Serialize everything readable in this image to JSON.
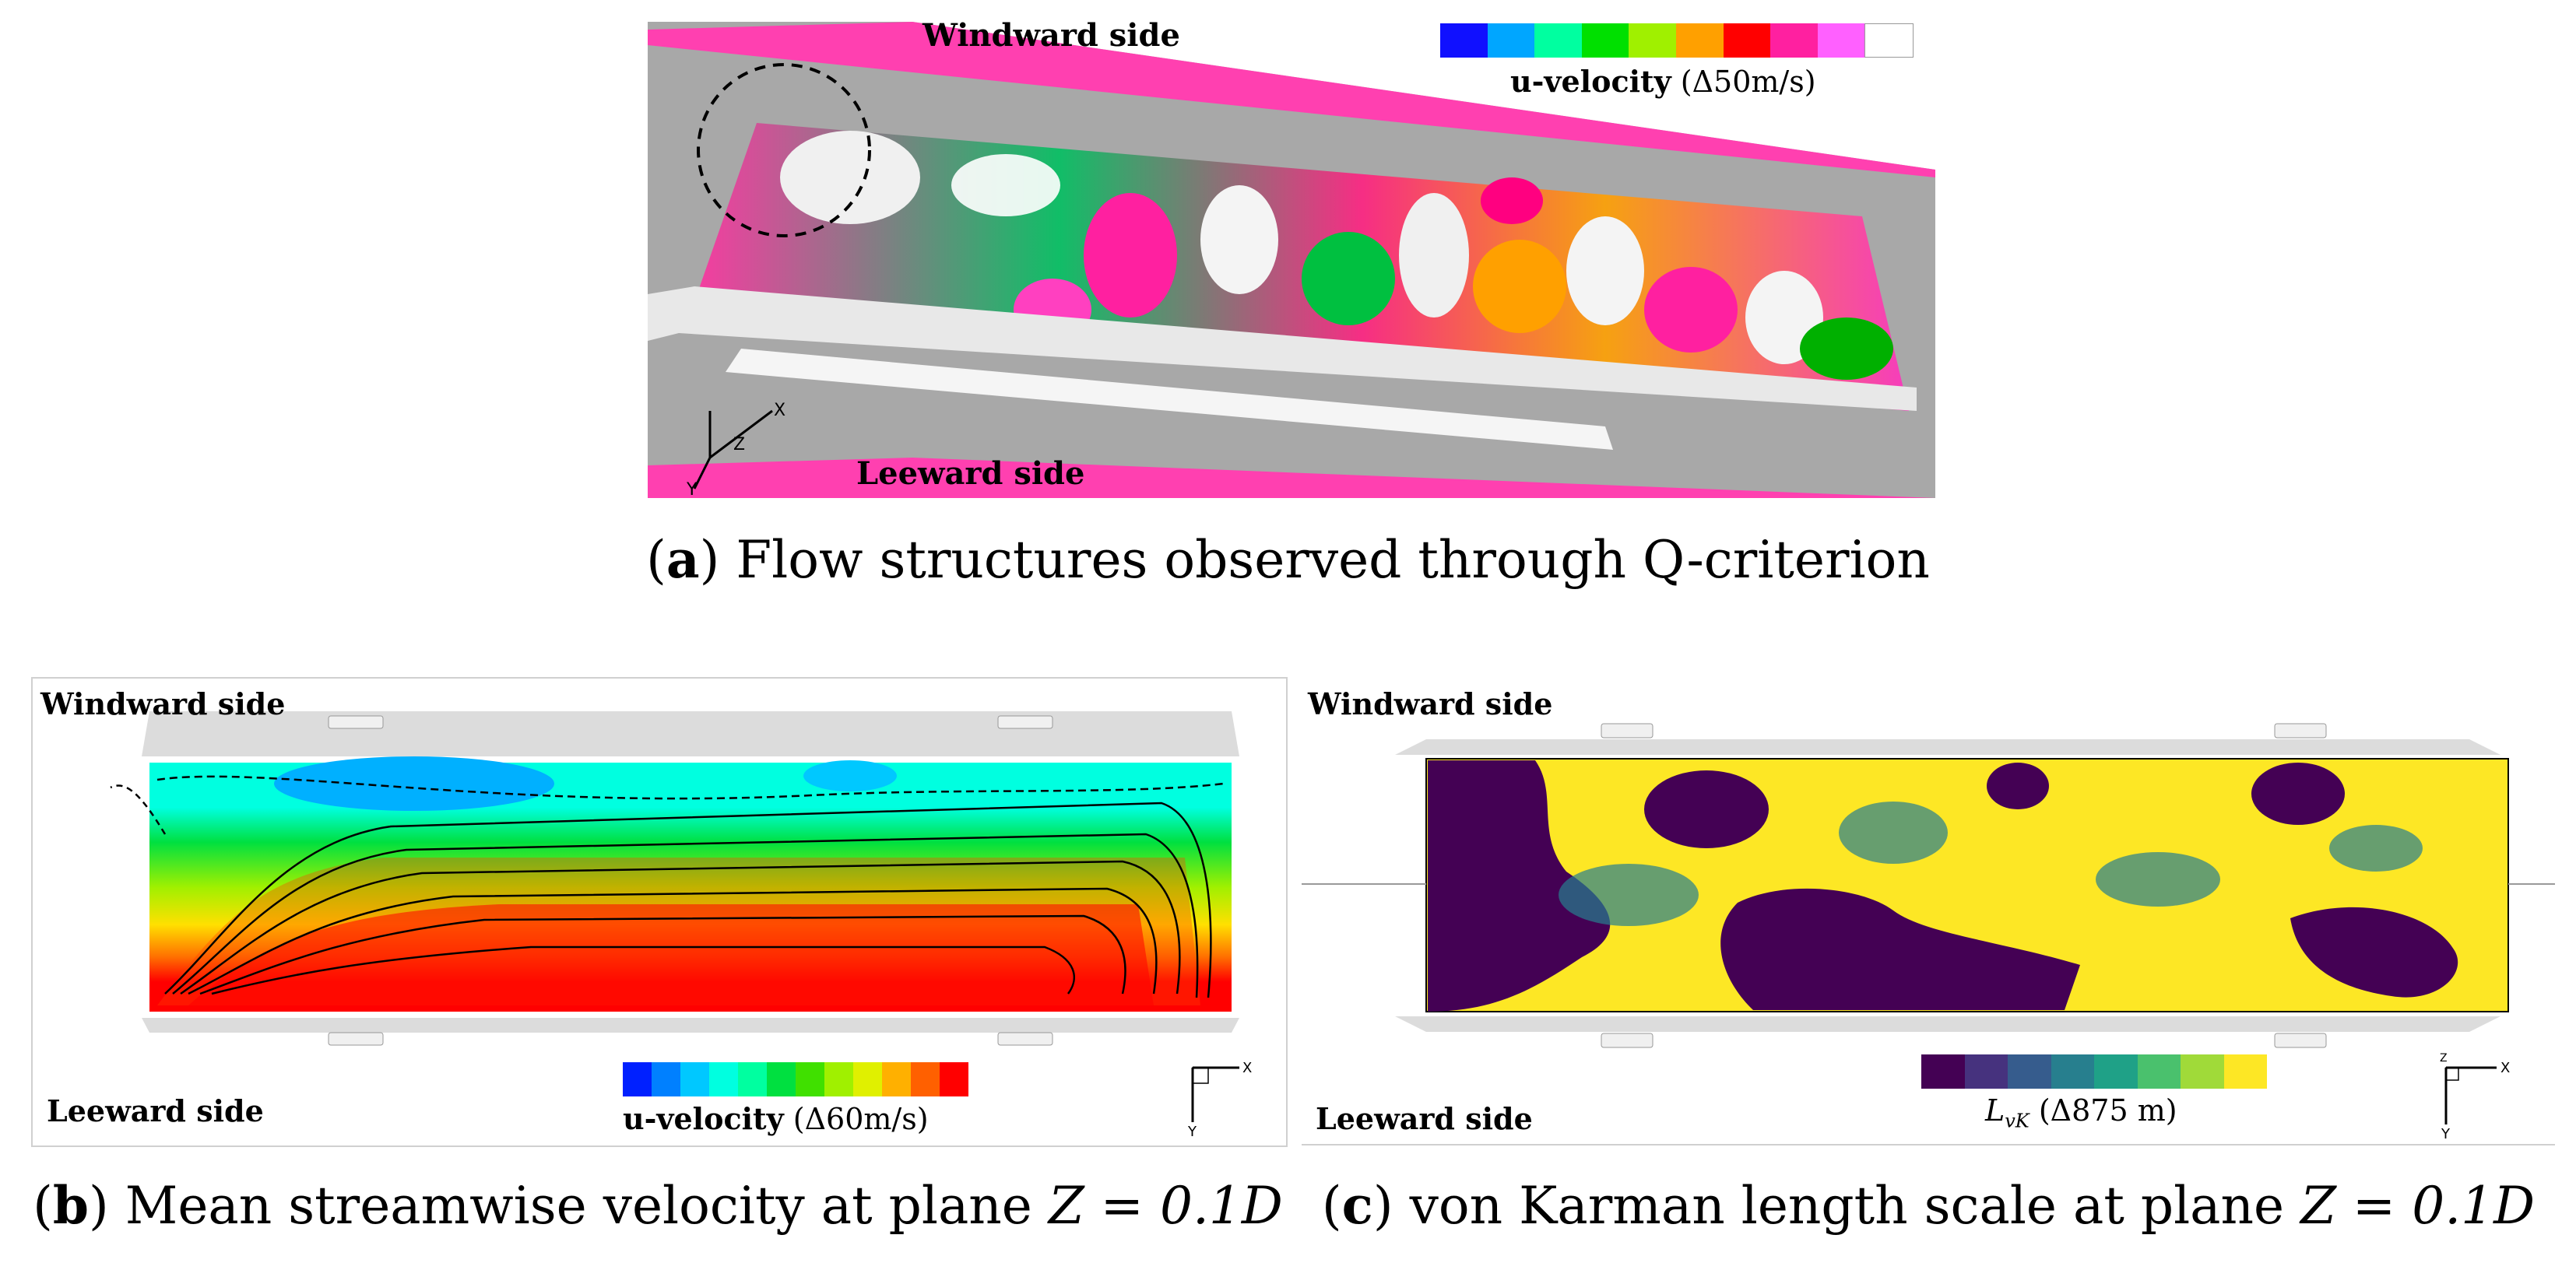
{
  "panel_a": {
    "label_top": "Windward side",
    "label_bottom": "Leeward side",
    "colorbar_title_bold": "u-velocity",
    "colorbar_title_rest": "(Δ50m/s)",
    "colorbar_colors": [
      "#1010ff",
      "#00a6ff",
      "#00ffa0",
      "#00e000",
      "#a0f000",
      "#ffa000",
      "#ff0000",
      "#ff20a0",
      "#ff60ff",
      "#ffffff"
    ],
    "axes": {
      "x": "X",
      "y": "Y",
      "z": "Z"
    },
    "caption_letter": "a",
    "caption_text": " Flow structures observed through Q-criterion"
  },
  "panel_b": {
    "label_top": "Windward side",
    "label_bottom": "Leeward side",
    "colorbar_title_bold": "u-velocity",
    "colorbar_title_rest": "(Δ60m/s)",
    "colorbar_colors": [
      "#0020ff",
      "#0080ff",
      "#00c8ff",
      "#00ffe0",
      "#00ffa0",
      "#00e040",
      "#40e000",
      "#a0f000",
      "#e0f000",
      "#ffb000",
      "#ff6000",
      "#ff0000"
    ],
    "axes": {
      "x": "X",
      "y": "Y"
    },
    "caption_letter": "b",
    "caption_text": " Mean streamwise velocity at plane ",
    "caption_math": "Z = 0.1D"
  },
  "panel_c": {
    "label_top": "Windward side",
    "label_bottom": "Leeward side",
    "colorbar_title_math": "L",
    "colorbar_title_sub": "vK",
    "colorbar_title_rest": "(Δ875 m)",
    "colorbar_colors": [
      "#440154",
      "#46327e",
      "#365c8d",
      "#277f8e",
      "#1fa187",
      "#4ac16d",
      "#a0da39",
      "#fde725"
    ],
    "axes": {
      "x": "X",
      "y": "Y",
      "z": "Z"
    },
    "caption_letter": "c",
    "caption_text": " von Karman length scale at plane ",
    "caption_math": "Z = 0.1D"
  }
}
